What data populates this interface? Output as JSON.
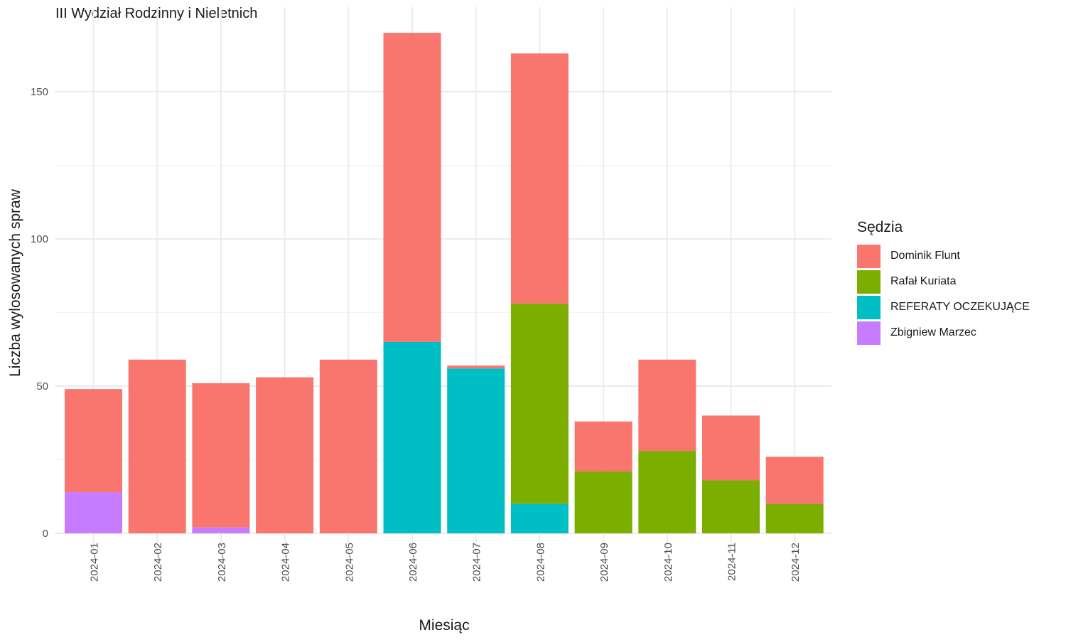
{
  "chart_data": {
    "type": "bar",
    "stacked": true,
    "title": "III Wydział Rodzinny i Nieletnich",
    "xlabel": "Miesiąc",
    "ylabel": "Liczba wylosowanych spraw",
    "ylim": [
      0,
      171
    ],
    "yticks": [
      0,
      50,
      100,
      150
    ],
    "grid": true,
    "legend_title": "Sędzia",
    "legend_position": "right",
    "categories": [
      "2024-01",
      "2024-02",
      "2024-03",
      "2024-04",
      "2024-05",
      "2024-06",
      "2024-07",
      "2024-08",
      "2024-09",
      "2024-10",
      "2024-11",
      "2024-12"
    ],
    "series": [
      {
        "name": "Zbigniew Marzec",
        "color": "#C77CFF",
        "values": [
          14,
          0,
          2,
          0,
          0,
          0,
          0,
          0,
          0,
          0,
          0,
          0
        ]
      },
      {
        "name": "REFERATY OCZEKUJĄCE",
        "color": "#00BFC4",
        "values": [
          0,
          0,
          0,
          0,
          0,
          65,
          56,
          10,
          0,
          0,
          0,
          0
        ]
      },
      {
        "name": "Rafał Kuriata",
        "color": "#7CAE00",
        "values": [
          0,
          0,
          0,
          0,
          0,
          0,
          0,
          68,
          21,
          28,
          18,
          10
        ]
      },
      {
        "name": "Dominik Flunt",
        "color": "#F8766D",
        "values": [
          35,
          59,
          49,
          53,
          59,
          105,
          1,
          85,
          17,
          31,
          22,
          16
        ]
      }
    ],
    "legend_order": [
      "Dominik Flunt",
      "Rafał Kuriata",
      "REFERATY OCZEKUJĄCE",
      "Zbigniew Marzec"
    ]
  }
}
